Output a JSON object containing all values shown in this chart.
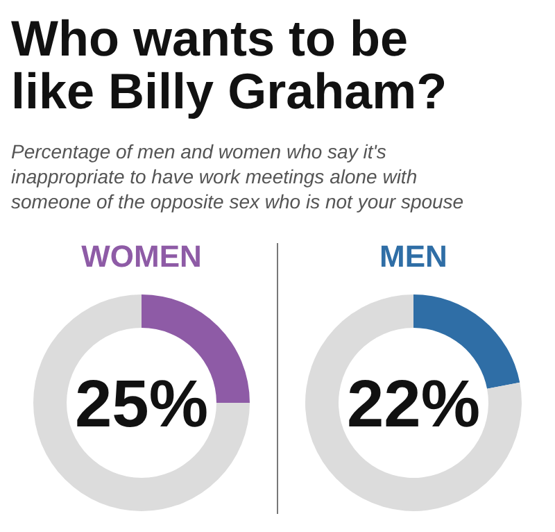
{
  "chart_data": [
    {
      "type": "donut",
      "title": "WOMEN",
      "annotations": [
        "Who wants to be like Billy Graham?",
        "Percentage of men and women who say it's inappropriate to have work meetings alone with someone of the opposite sex who is not your spouse",
        "25%"
      ],
      "categories": [
        null,
        null
      ],
      "values": [
        25,
        75
      ],
      "colors": [
        "#8e5ba6",
        "#dcdcdc"
      ]
    },
    {
      "type": "donut",
      "title": "MEN",
      "annotations": [
        "22%"
      ],
      "categories": [
        null,
        null
      ],
      "values": [
        22,
        78
      ],
      "colors": [
        "#2f6ea6",
        "#dcdcdc"
      ]
    }
  ]
}
